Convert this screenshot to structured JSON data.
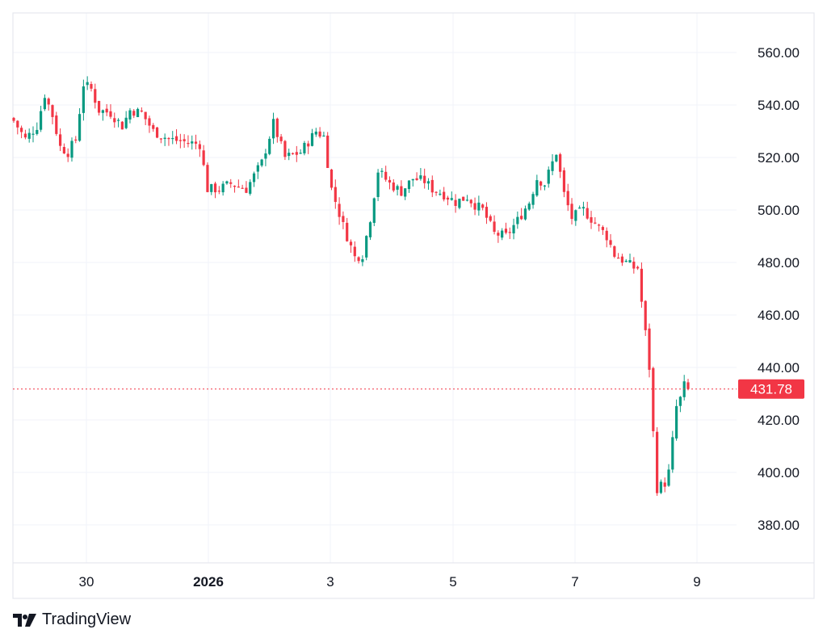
{
  "brand": {
    "name": "TradingView",
    "icon": "tradingview-logo-icon"
  },
  "current_price": {
    "label": "431.78",
    "value": 431.78,
    "color": "#f23645"
  },
  "colors": {
    "up": "#089981",
    "down": "#f23645",
    "grid": "#f0f3fa",
    "axis_text": "#131722"
  },
  "chart_data": {
    "type": "candlestick",
    "title": "",
    "xlabel": "",
    "ylabel": "",
    "ylim": [
      365,
      570
    ],
    "y_ticks": [
      "560.00",
      "540.00",
      "520.00",
      "500.00",
      "480.00",
      "460.00",
      "440.00",
      "420.00",
      "400.00",
      "380.00"
    ],
    "x_ticks": [
      {
        "label": "30",
        "bold": false
      },
      {
        "label": "2026",
        "bold": true
      },
      {
        "label": "3",
        "bold": false
      },
      {
        "label": "5",
        "bold": false
      },
      {
        "label": "7",
        "bold": false
      },
      {
        "label": "9",
        "bold": false
      }
    ],
    "grid": true,
    "close_path": [
      [
        0,
        534
      ],
      [
        3,
        527
      ],
      [
        6,
        532
      ],
      [
        8,
        544
      ],
      [
        10,
        536
      ],
      [
        12,
        524
      ],
      [
        14,
        522
      ],
      [
        16,
        527
      ],
      [
        18,
        548
      ],
      [
        20,
        546
      ],
      [
        22,
        538
      ],
      [
        25,
        537
      ],
      [
        28,
        532
      ],
      [
        30,
        538
      ],
      [
        33,
        537
      ],
      [
        36,
        530
      ],
      [
        40,
        527
      ],
      [
        44,
        526
      ],
      [
        48,
        525
      ],
      [
        50,
        508
      ],
      [
        53,
        508
      ],
      [
        56,
        510
      ],
      [
        60,
        508
      ],
      [
        64,
        518
      ],
      [
        67,
        533
      ],
      [
        70,
        520
      ],
      [
        74,
        522
      ],
      [
        78,
        530
      ],
      [
        80,
        528
      ],
      [
        82,
        508
      ],
      [
        85,
        494
      ],
      [
        88,
        482
      ],
      [
        90,
        483
      ],
      [
        92,
        497
      ],
      [
        94,
        515
      ],
      [
        97,
        510
      ],
      [
        100,
        507
      ],
      [
        103,
        512
      ],
      [
        106,
        511
      ],
      [
        108,
        508
      ],
      [
        111,
        506
      ],
      [
        114,
        503
      ],
      [
        117,
        505
      ],
      [
        119,
        502
      ],
      [
        121,
        500
      ],
      [
        124,
        491
      ],
      [
        127,
        490
      ],
      [
        130,
        496
      ],
      [
        133,
        503
      ],
      [
        135,
        512
      ],
      [
        137,
        510
      ],
      [
        140,
        522
      ],
      [
        142,
        506
      ],
      [
        144,
        497
      ],
      [
        147,
        500
      ],
      [
        150,
        495
      ],
      [
        153,
        490
      ],
      [
        155,
        483
      ],
      [
        158,
        480
      ],
      [
        160,
        478
      ],
      [
        161,
        478
      ],
      [
        162,
        465
      ],
      [
        163,
        453
      ],
      [
        164,
        440
      ],
      [
        165,
        415
      ],
      [
        166,
        394
      ],
      [
        168,
        396
      ],
      [
        169,
        400
      ],
      [
        170,
        412
      ],
      [
        171,
        425
      ],
      [
        172,
        428
      ],
      [
        173,
        433
      ],
      [
        174,
        432
      ]
    ]
  }
}
